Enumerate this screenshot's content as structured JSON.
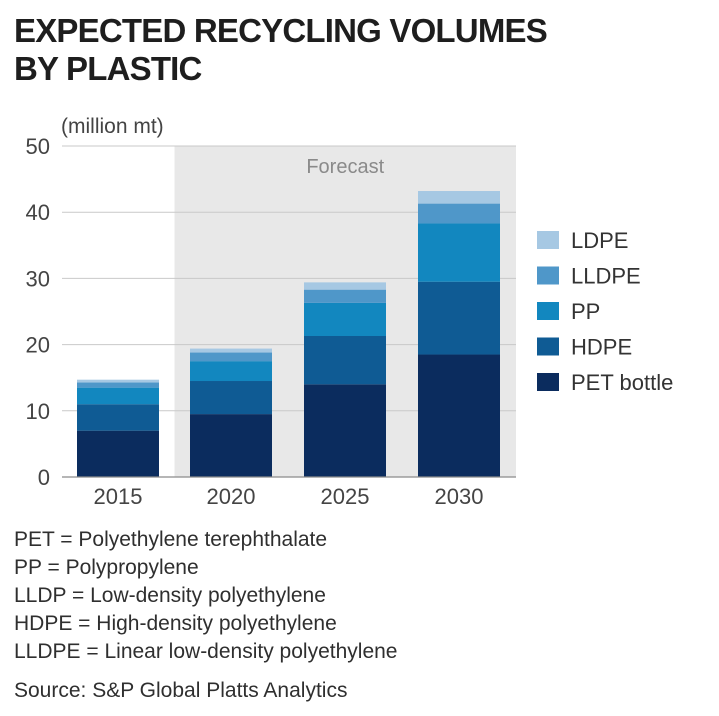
{
  "title_lines": [
    "EXPECTED RECYCLING VOLUMES",
    "BY PLASTIC"
  ],
  "chart_data": {
    "type": "bar",
    "stacked": true,
    "title": "EXPECTED RECYCLING VOLUMES BY PLASTIC",
    "unit_label": "(million mt)",
    "categories": [
      "2015",
      "2020",
      "2025",
      "2030"
    ],
    "ylim": [
      0,
      50
    ],
    "yticks": [
      "0",
      "10",
      "20",
      "30",
      "40",
      "50"
    ],
    "forecast_label": "Forecast",
    "forecast_from_category": "2020",
    "legend_position": "right",
    "series": [
      {
        "name": "PET bottle",
        "color": "#0b2c5e",
        "values": [
          7.0,
          9.5,
          14.0,
          18.5
        ]
      },
      {
        "name": "HDPE",
        "color": "#0f5b94",
        "values": [
          4.0,
          5.0,
          7.3,
          11.0
        ]
      },
      {
        "name": "PP",
        "color": "#1287bf",
        "values": [
          2.5,
          3.0,
          5.0,
          8.8
        ]
      },
      {
        "name": "LLDPE",
        "color": "#4f97c9",
        "values": [
          0.8,
          1.3,
          2.0,
          3.0
        ]
      },
      {
        "name": "LDPE",
        "color": "#a6c8e3",
        "values": [
          0.4,
          0.6,
          1.1,
          1.9
        ]
      }
    ]
  },
  "notes": [
    "PET = Polyethylene terephthalate",
    "PP = Polypropylene",
    "LLDP = Low-density polyethylene",
    "HDPE = High-density polyethylene",
    "LLDPE = Linear low-density polyethylene"
  ],
  "source": "Source: S&P Global Platts Analytics"
}
